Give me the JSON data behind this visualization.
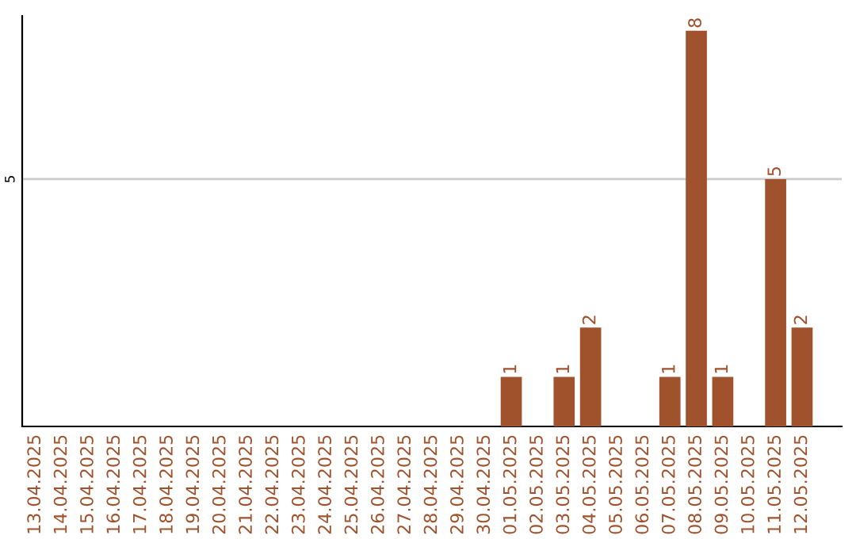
{
  "chart_data": {
    "type": "bar",
    "categories": [
      "13.04.2025",
      "14.04.2025",
      "15.04.2025",
      "16.04.2025",
      "17.04.2025",
      "18.04.2025",
      "19.04.2025",
      "20.04.2025",
      "21.04.2025",
      "22.04.2025",
      "23.04.2025",
      "24.04.2025",
      "25.04.2025",
      "26.04.2025",
      "27.04.2025",
      "28.04.2025",
      "29.04.2025",
      "30.04.2025",
      "01.05.2025",
      "02.05.2025",
      "03.05.2025",
      "04.05.2025",
      "05.05.2025",
      "06.05.2025",
      "07.05.2025",
      "08.05.2025",
      "09.05.2025",
      "10.05.2025",
      "11.05.2025",
      "12.05.2025"
    ],
    "values": [
      null,
      null,
      null,
      null,
      null,
      null,
      null,
      null,
      null,
      null,
      null,
      null,
      null,
      null,
      null,
      null,
      null,
      null,
      1,
      null,
      1,
      2,
      null,
      null,
      1,
      8,
      1,
      null,
      5,
      2
    ],
    "value_labels": [
      null,
      null,
      null,
      null,
      null,
      null,
      null,
      null,
      null,
      null,
      null,
      null,
      null,
      null,
      null,
      null,
      null,
      null,
      "1",
      null,
      "1",
      "2",
      null,
      null,
      "1",
      "8",
      "1",
      null,
      "5",
      "2"
    ],
    "color": "#a0522d",
    "ylim": [
      0,
      8.3
    ],
    "ref_lines": [
      {
        "axis": "y",
        "value": 5,
        "label": "5",
        "color": "#cccccc"
      }
    ]
  }
}
